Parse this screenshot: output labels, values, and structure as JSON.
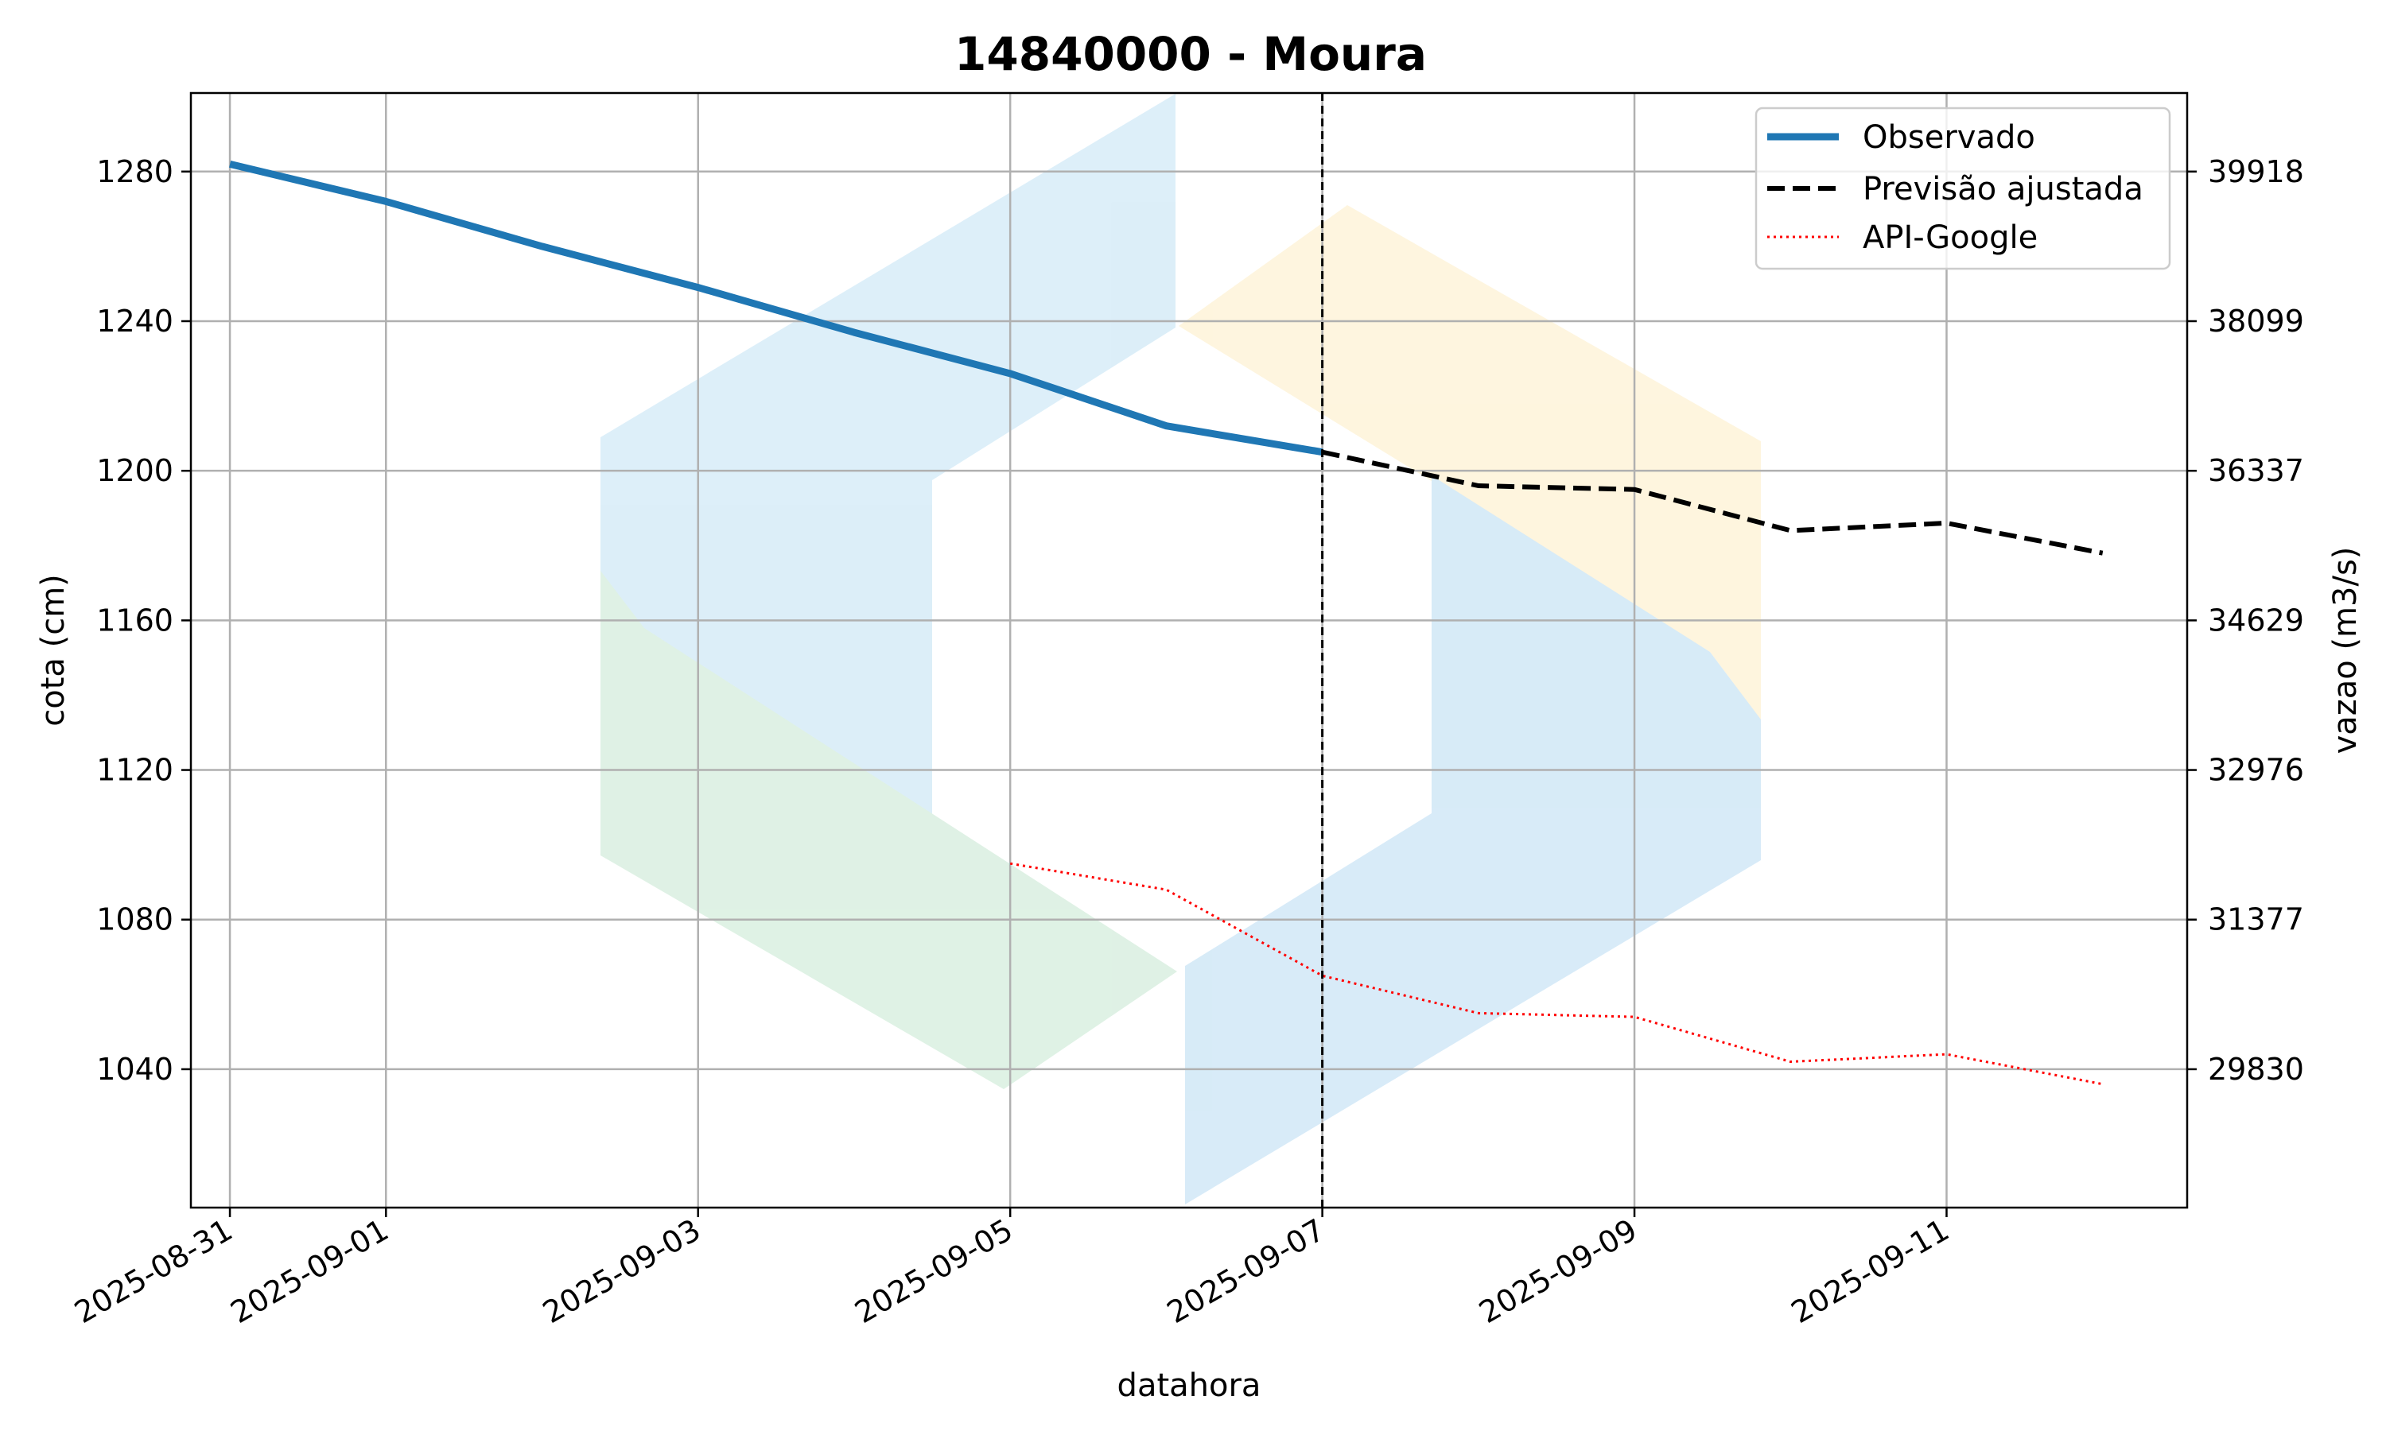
{
  "chart_data": {
    "type": "line",
    "title": "14840000 - Moura",
    "xlabel": "datahora",
    "ylabel": "cota (cm)",
    "ylabel_right": "vazao (m3/s)",
    "xlim": [
      "2025-08-30 18:00",
      "2025-09-12 13:00"
    ],
    "ylim": [
      1003,
      1301
    ],
    "x_ticks": [
      "2025-08-31",
      "2025-09-01",
      "2025-09-03",
      "2025-09-05",
      "2025-09-07",
      "2025-09-09",
      "2025-09-11"
    ],
    "y_ticks": [
      1040,
      1080,
      1120,
      1160,
      1200,
      1240,
      1280
    ],
    "y_ticks_right": [
      "29830",
      "31377",
      "32976",
      "34629",
      "36337",
      "38099",
      "39918"
    ],
    "grid": true,
    "legend_position": "top-right",
    "forecast_start": "2025-09-07",
    "series": [
      {
        "name": "Observado",
        "color": "#1f77b4",
        "style": "solid",
        "points": [
          {
            "x": "2025-08-31",
            "y": 1282
          },
          {
            "x": "2025-09-01",
            "y": 1272
          },
          {
            "x": "2025-09-02",
            "y": 1260
          },
          {
            "x": "2025-09-03",
            "y": 1249
          },
          {
            "x": "2025-09-04",
            "y": 1237
          },
          {
            "x": "2025-09-05",
            "y": 1226
          },
          {
            "x": "2025-09-06",
            "y": 1212
          },
          {
            "x": "2025-09-07",
            "y": 1205
          }
        ]
      },
      {
        "name": "Previsão ajustada",
        "color": "#000000",
        "style": "dashed",
        "points": [
          {
            "x": "2025-09-07",
            "y": 1205
          },
          {
            "x": "2025-09-08",
            "y": 1196
          },
          {
            "x": "2025-09-09",
            "y": 1195
          },
          {
            "x": "2025-09-10",
            "y": 1184
          },
          {
            "x": "2025-09-11",
            "y": 1186
          },
          {
            "x": "2025-09-12",
            "y": 1178
          }
        ]
      },
      {
        "name": "API-Google",
        "color": "#ff0000",
        "style": "dotted",
        "points": [
          {
            "x": "2025-09-05",
            "y": 1095
          },
          {
            "x": "2025-09-06",
            "y": 1088
          },
          {
            "x": "2025-09-07",
            "y": 1065
          },
          {
            "x": "2025-09-08",
            "y": 1055
          },
          {
            "x": "2025-09-09",
            "y": 1054
          },
          {
            "x": "2025-09-10",
            "y": 1042
          },
          {
            "x": "2025-09-11",
            "y": 1044
          },
          {
            "x": "2025-09-12",
            "y": 1036
          }
        ]
      }
    ]
  }
}
